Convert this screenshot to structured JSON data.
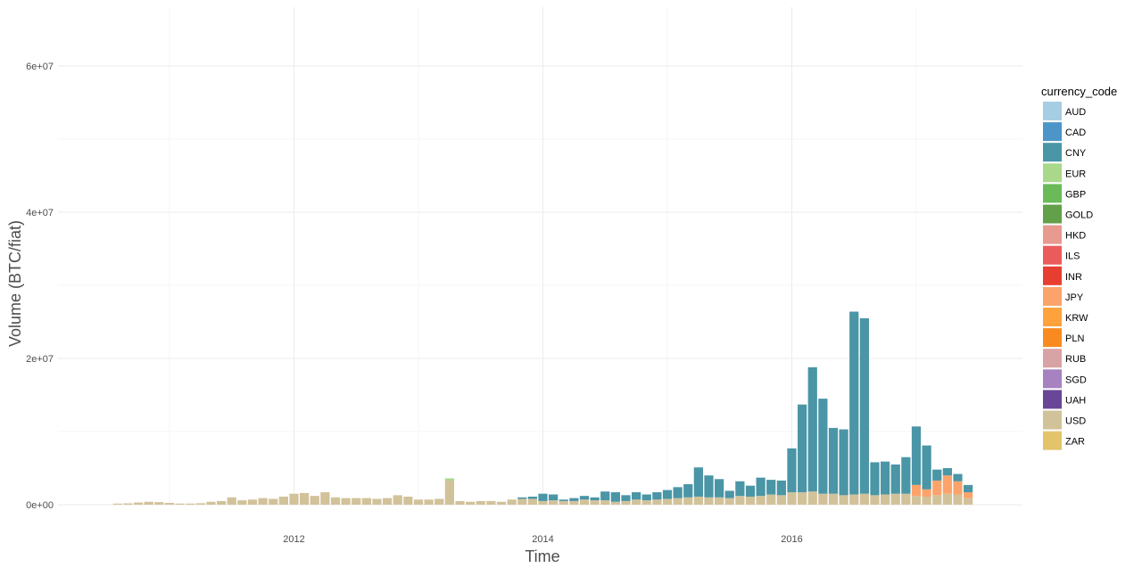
{
  "chart_data": {
    "type": "bar",
    "stacked": true,
    "xlabel": "Time",
    "ylabel": "Volume (BTC/fiat)",
    "x_ticks": [
      "2012",
      "2014",
      "2016"
    ],
    "y_ticks": [
      "0e+00",
      "2e+07",
      "4e+07",
      "6e+07"
    ],
    "ylim": [
      0,
      65000000
    ],
    "grid": true,
    "legend_position": "right",
    "legend_title": "currency_code",
    "categories_note": "monthly",
    "months": [
      "2010-08",
      "2010-09",
      "2010-10",
      "2010-11",
      "2010-12",
      "2011-01",
      "2011-02",
      "2011-03",
      "2011-04",
      "2011-05",
      "2011-06",
      "2011-07",
      "2011-08",
      "2011-09",
      "2011-10",
      "2011-11",
      "2011-12",
      "2012-01",
      "2012-02",
      "2012-03",
      "2012-04",
      "2012-05",
      "2012-06",
      "2012-07",
      "2012-08",
      "2012-09",
      "2012-10",
      "2012-11",
      "2012-12",
      "2013-01",
      "2013-02",
      "2013-03",
      "2013-04",
      "2013-05",
      "2013-06",
      "2013-07",
      "2013-08",
      "2013-09",
      "2013-10",
      "2013-11",
      "2013-12",
      "2014-01",
      "2014-02",
      "2014-03",
      "2014-04",
      "2014-05",
      "2014-06",
      "2014-07",
      "2014-08",
      "2014-09",
      "2014-10",
      "2014-11",
      "2014-12",
      "2015-01",
      "2015-02",
      "2015-03",
      "2015-04",
      "2015-05",
      "2015-06",
      "2015-07",
      "2015-08",
      "2015-09",
      "2015-10",
      "2015-11",
      "2015-12",
      "2016-01",
      "2016-02",
      "2016-03",
      "2016-04",
      "2016-05",
      "2016-06",
      "2016-07",
      "2016-08",
      "2016-09",
      "2016-10",
      "2016-11",
      "2016-12",
      "2017-01",
      "2017-02",
      "2017-03",
      "2017-04",
      "2017-05",
      "2017-06"
    ],
    "series": [
      {
        "name": "AUD",
        "color": "#a6cee3",
        "values": []
      },
      {
        "name": "CAD",
        "color": "#4c95c8",
        "values": []
      },
      {
        "name": "CNY",
        "color": "#4a95a6",
        "values": [
          0,
          0,
          0,
          0,
          0,
          0,
          0,
          0,
          0,
          0,
          0,
          0,
          0,
          0,
          0,
          0,
          0,
          0,
          0,
          0,
          0,
          0,
          0,
          0,
          0,
          0,
          0,
          0,
          0,
          0,
          0,
          0,
          0,
          0,
          0,
          0,
          0,
          0,
          0,
          200000,
          300000,
          1000000,
          800000,
          200000,
          400000,
          500000,
          400000,
          1200000,
          1300000,
          800000,
          1000000,
          800000,
          1000000,
          1200000,
          1500000,
          1800000,
          4000000,
          3000000,
          2500000,
          1000000,
          2000000,
          1500000,
          2500000,
          2000000,
          2000000,
          6000000,
          12000000,
          17000000,
          13000000,
          9000000,
          9000000,
          25000000,
          24000000,
          4500000,
          4500000,
          4000000,
          5000000,
          8000000,
          6000000,
          1500000,
          1000000,
          1000000,
          1000000
        ]
      },
      {
        "name": "EUR",
        "color": "#a9d88b",
        "values": [
          0,
          0,
          0,
          0,
          0,
          0,
          0,
          0,
          0,
          0,
          0,
          0,
          0,
          0,
          0,
          0,
          0,
          0,
          0,
          0,
          0,
          0,
          0,
          0,
          0,
          0,
          0,
          0,
          0,
          0,
          0,
          0,
          300000,
          0,
          0,
          0,
          0,
          0,
          0,
          0,
          0,
          0,
          0,
          0,
          0,
          0,
          0,
          0,
          0,
          0,
          0,
          0,
          0,
          0,
          0,
          0,
          0,
          0,
          0,
          0,
          0,
          0,
          0,
          0,
          0,
          0,
          0,
          0,
          0,
          0,
          0,
          0,
          0,
          0,
          0,
          0,
          0,
          0,
          0,
          0,
          0,
          0,
          0
        ]
      },
      {
        "name": "GBP",
        "color": "#6abb58",
        "values": []
      },
      {
        "name": "GOLD",
        "color": "#62a04a",
        "values": []
      },
      {
        "name": "HKD",
        "color": "#e89a90",
        "values": []
      },
      {
        "name": "ILS",
        "color": "#ec5b5b",
        "values": []
      },
      {
        "name": "INR",
        "color": "#e63f32",
        "values": []
      },
      {
        "name": "JPY",
        "color": "#fba36a",
        "values": [
          0,
          0,
          0,
          0,
          0,
          0,
          0,
          0,
          0,
          0,
          0,
          0,
          0,
          0,
          0,
          0,
          0,
          0,
          0,
          0,
          0,
          0,
          0,
          0,
          0,
          0,
          0,
          0,
          0,
          0,
          0,
          0,
          0,
          0,
          0,
          0,
          0,
          0,
          0,
          0,
          0,
          0,
          0,
          0,
          0,
          0,
          0,
          0,
          0,
          0,
          0,
          0,
          0,
          0,
          0,
          0,
          0,
          0,
          0,
          0,
          0,
          0,
          0,
          0,
          0,
          0,
          0,
          0,
          0,
          0,
          0,
          0,
          0,
          0,
          0,
          0,
          0,
          1500000,
          1000000,
          2000000,
          2500000,
          1800000,
          800000
        ]
      },
      {
        "name": "KRW",
        "color": "#fda23c",
        "values": []
      },
      {
        "name": "PLN",
        "color": "#f98a1f",
        "values": []
      },
      {
        "name": "RUB",
        "color": "#d8a3a4",
        "values": []
      },
      {
        "name": "SGD",
        "color": "#a782c0",
        "values": []
      },
      {
        "name": "UAH",
        "color": "#6a4796",
        "values": []
      },
      {
        "name": "USD",
        "color": "#d2c29a",
        "values": [
          150000,
          180000,
          300000,
          400000,
          350000,
          250000,
          150000,
          150000,
          200000,
          400000,
          500000,
          1000000,
          600000,
          700000,
          900000,
          800000,
          1100000,
          1500000,
          1600000,
          1200000,
          1700000,
          1000000,
          900000,
          900000,
          900000,
          800000,
          900000,
          1300000,
          1100000,
          700000,
          700000,
          800000,
          3300000,
          500000,
          400000,
          500000,
          500000,
          400000,
          700000,
          800000,
          800000,
          500000,
          600000,
          500000,
          500000,
          700000,
          600000,
          600000,
          400000,
          500000,
          700000,
          600000,
          700000,
          800000,
          900000,
          1000000,
          1100000,
          1000000,
          1000000,
          900000,
          1200000,
          1100000,
          1200000,
          1400000,
          1300000,
          1700000,
          1700000,
          1800000,
          1500000,
          1500000,
          1300000,
          1400000,
          1500000,
          1300000,
          1400000,
          1500000,
          1500000,
          1200000,
          1100000,
          1300000,
          1500000,
          1400000,
          900000
        ]
      },
      {
        "name": "ZAR",
        "color": "#e3c46b",
        "values": []
      }
    ]
  }
}
